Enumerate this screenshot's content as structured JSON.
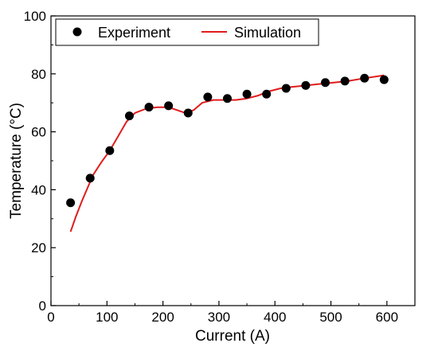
{
  "chart_data": {
    "type": "scatter",
    "title": "",
    "xlabel": "Current (A)",
    "ylabel": "Temperature (°C)",
    "xlim": [
      0,
      650
    ],
    "ylim": [
      0,
      100
    ],
    "x_ticks": [
      0,
      100,
      200,
      300,
      400,
      500,
      600
    ],
    "y_ticks": [
      0,
      20,
      40,
      60,
      80,
      100
    ],
    "grid": false,
    "legend_position": "top-left",
    "series": [
      {
        "name": "Experiment",
        "kind": "scatter",
        "color": "#000000",
        "x": [
          35,
          70,
          105,
          140,
          175,
          210,
          245,
          280,
          315,
          350,
          385,
          420,
          455,
          490,
          525,
          560,
          595
        ],
        "y": [
          35.5,
          44,
          53.5,
          65.5,
          68.5,
          69,
          66.5,
          72,
          71.5,
          73,
          73,
          75,
          76,
          77,
          77.5,
          78.5,
          78
        ]
      },
      {
        "name": "Simulation",
        "kind": "line",
        "color": "#e11c1c",
        "x": [
          35,
          45,
          55,
          65,
          75,
          90,
          105,
          120,
          135,
          150,
          170,
          190,
          210,
          225,
          240,
          255,
          270,
          290,
          310,
          330,
          350,
          370,
          390,
          410,
          430,
          455,
          480,
          505,
          530,
          560,
          595
        ],
        "y": [
          25.5,
          31,
          36,
          40.5,
          45,
          49.5,
          53.5,
          58.5,
          63.5,
          66.5,
          68,
          68.5,
          68.5,
          67.5,
          66.5,
          67.5,
          70,
          71,
          71,
          71,
          71.5,
          72.5,
          74,
          75,
          75.5,
          76,
          76.5,
          77,
          77.5,
          78.5,
          79.5
        ]
      }
    ]
  }
}
